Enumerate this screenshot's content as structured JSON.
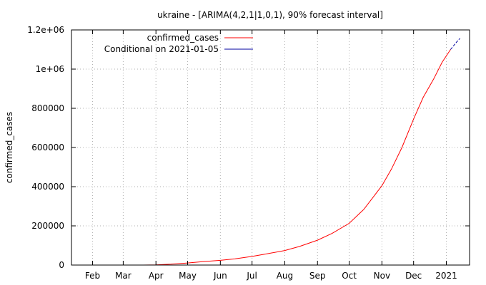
{
  "chart_data": {
    "type": "line",
    "title": "ukraine -  [ARIMA(4,2,1|1,0,1), 90% forecast interval]",
    "xlabel": "",
    "ylabel": "confirmed_cases",
    "x_range": [
      "2020-01-12",
      "2021-01-23"
    ],
    "ylim": [
      0,
      1200000
    ],
    "y_ticks": [
      0,
      200000,
      400000,
      600000,
      800000,
      1000000,
      1200000
    ],
    "y_tick_labels": [
      "0",
      "200000",
      "400000",
      "600000",
      "800000",
      "1e+06",
      "1.2e+06"
    ],
    "x_ticks": [
      "2020-02-01",
      "2020-03-01",
      "2020-04-01",
      "2020-05-01",
      "2020-06-01",
      "2020-07-01",
      "2020-08-01",
      "2020-09-01",
      "2020-10-01",
      "2020-11-01",
      "2020-12-01",
      "2021-01-01"
    ],
    "x_tick_labels": [
      "Feb",
      "Mar",
      "Apr",
      "May",
      "Jun",
      "Jul",
      "Aug",
      "Sep",
      "Oct",
      "Nov",
      "Dec",
      "2021"
    ],
    "grid": true,
    "legend_position": "top-left",
    "series": [
      {
        "name": "confirmed_cases",
        "color": "#ff0000",
        "points": [
          [
            "2020-03-03",
            0
          ],
          [
            "2020-03-20",
            30
          ],
          [
            "2020-04-01",
            800
          ],
          [
            "2020-04-15",
            4200
          ],
          [
            "2020-05-01",
            10500
          ],
          [
            "2020-05-15",
            17000
          ],
          [
            "2020-06-01",
            24000
          ],
          [
            "2020-06-15",
            32000
          ],
          [
            "2020-07-01",
            44000
          ],
          [
            "2020-07-15",
            57000
          ],
          [
            "2020-08-01",
            74000
          ],
          [
            "2020-08-15",
            95000
          ],
          [
            "2020-09-01",
            127000
          ],
          [
            "2020-09-15",
            162000
          ],
          [
            "2020-10-01",
            213000
          ],
          [
            "2020-10-15",
            285000
          ],
          [
            "2020-11-01",
            405000
          ],
          [
            "2020-11-10",
            490000
          ],
          [
            "2020-11-20",
            600000
          ],
          [
            "2020-12-01",
            745000
          ],
          [
            "2020-12-10",
            855000
          ],
          [
            "2020-12-20",
            950000
          ],
          [
            "2020-12-28",
            1035000
          ],
          [
            "2021-01-05",
            1100000
          ]
        ]
      },
      {
        "name": "Conditional on 2021-01-05",
        "color": "#0000a0",
        "points": [
          [
            "2021-01-05",
            1100000
          ],
          [
            "2021-01-08",
            1120000
          ],
          [
            "2021-01-11",
            1140000
          ],
          [
            "2021-01-14",
            1157000
          ]
        ]
      }
    ]
  }
}
